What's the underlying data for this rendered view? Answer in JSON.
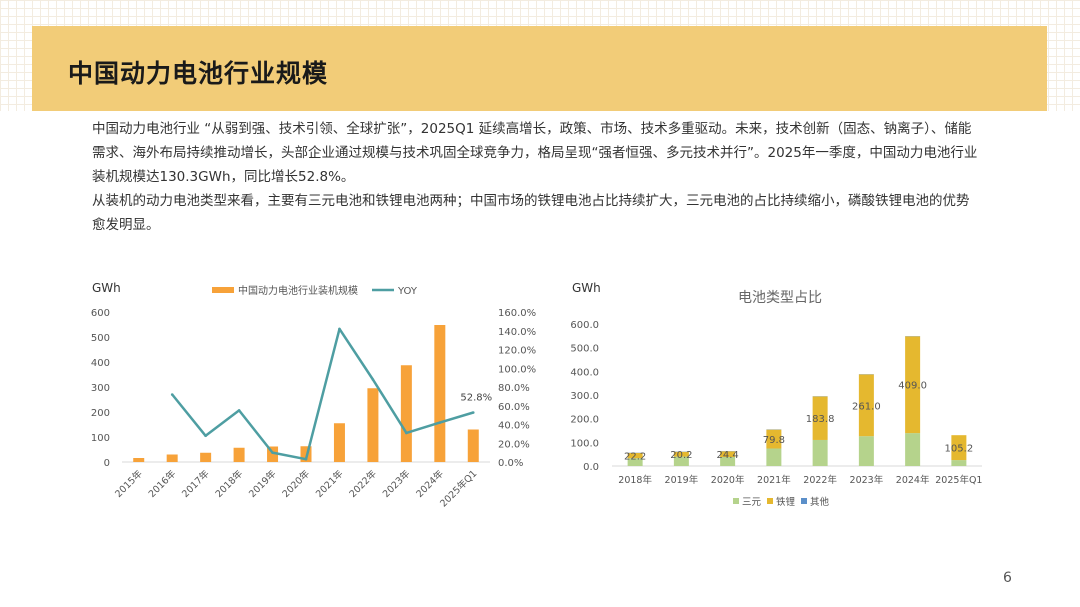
{
  "slide": {
    "title": "中国动力电池行业规模",
    "paragraphs": [
      "中国动力电池行业 “从弱到强、技术引领、全球扩张”，2025Q1 延续高增长，政策、市场、技术多重驱动。未来，技术创新（固态、钠离子）、储能需求、海外布局持续推动增长，头部企业通过规模与技术巩固全球竞争力，格局呈现“强者恒强、多元技术并行”。2025年一季度，中国动力电池行业装机规模达130.3GWh，同比增长52.8%。",
      "从装机的动力电池类型来看，主要有三元电池和铁锂电池两种；中国市场的铁锂电池占比持续扩大，三元电池的占比持续缩小，磷酸铁锂电池的优势愈发明显。"
    ],
    "page_number": "6"
  },
  "chart_data": [
    {
      "type": "bar+line",
      "title": "",
      "ylabel": "GWh",
      "categories": [
        "2015年",
        "2016年",
        "2017年",
        "2018年",
        "2019年",
        "2020年",
        "2021年",
        "2022年",
        "2023年",
        "2024年",
        "2025年Q1"
      ],
      "ylim": [
        0,
        600
      ],
      "yticks": [
        "0",
        "100",
        "200",
        "300",
        "400",
        "500",
        "600"
      ],
      "y2lim": [
        0,
        160
      ],
      "y2ticks": [
        "0.0%",
        "20.0%",
        "40.0%",
        "60.0%",
        "80.0%",
        "100.0%",
        "120.0%",
        "140.0%",
        "160.0%"
      ],
      "legend_position": "top",
      "series": [
        {
          "name": "中国动力电池行业装机规模",
          "kind": "bar",
          "axis": "left",
          "color": "#f7a239",
          "values": [
            16,
            30,
            37,
            57,
            62,
            63,
            155,
            295,
            387,
            548,
            130
          ]
        },
        {
          "name": "YOY",
          "kind": "line",
          "axis": "right",
          "color": "#4e9ea2",
          "values": [
            null,
            72,
            28,
            55,
            10,
            3,
            142,
            88,
            31,
            42,
            52.8
          ]
        }
      ],
      "annotations": [
        {
          "index": 10,
          "text": "52.8%"
        }
      ]
    },
    {
      "type": "stacked-bar",
      "title": "电池类型占比",
      "ylabel": "GWh",
      "categories": [
        "2018年",
        "2019年",
        "2020年",
        "2021年",
        "2022年",
        "2023年",
        "2024年",
        "2025年Q1"
      ],
      "ylim": [
        0,
        600
      ],
      "yticks": [
        "0.0",
        "100.0",
        "200.0",
        "300.0",
        "400.0",
        "500.0",
        "600.0"
      ],
      "legend_position": "bottom",
      "series": [
        {
          "name": "三元",
          "color": "#b5d38c",
          "values": [
            33,
            40,
            38,
            74,
            110,
            126,
            139,
            25
          ]
        },
        {
          "name": "铁锂",
          "color": "#e5b82f",
          "values": [
            22.2,
            20.2,
            24.4,
            79.8,
            183.8,
            261.0,
            409.0,
            105.2
          ]
        },
        {
          "name": "其他",
          "color": "#5b8fc9",
          "values": [
            1,
            1,
            1,
            1,
            1,
            1,
            1,
            0
          ]
        }
      ],
      "data_labels": [
        "22.2",
        "20.2",
        "24.4",
        "79.8",
        "183.8",
        "261.0",
        "409.0",
        "105.2"
      ]
    }
  ]
}
